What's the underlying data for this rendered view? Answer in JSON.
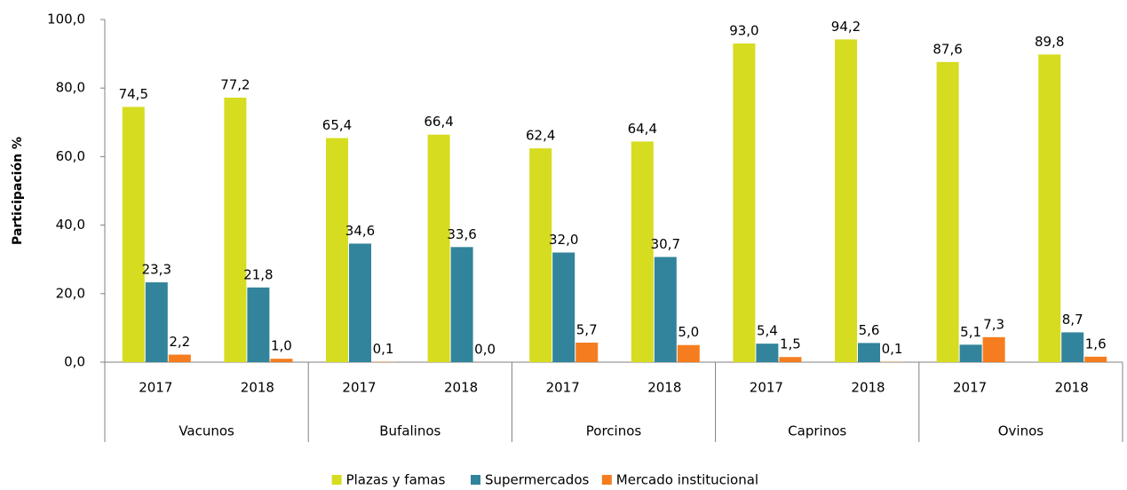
{
  "chart_data": {
    "type": "bar",
    "y_label": "Participación %",
    "categories": [
      "2017",
      "2018",
      "2017",
      "2018",
      "2017",
      "2018",
      "2017",
      "2018",
      "2017",
      "2018"
    ],
    "groups": [
      "Vacunos",
      "Bufalinos",
      "Porcinos",
      "Caprinos",
      "Ovinos"
    ],
    "series": [
      {
        "name": "Plazas y famas",
        "color": "#d6dc1f",
        "values": [
          74.5,
          77.2,
          65.4,
          66.4,
          62.4,
          64.4,
          93.0,
          94.2,
          87.6,
          89.8
        ],
        "value_labels": [
          "74,5",
          "77,2",
          "65,4",
          "66,4",
          "62,4",
          "64,4",
          "93,0",
          "94,2",
          "87,6",
          "89,8"
        ]
      },
      {
        "name": "Supermercados",
        "color": "#31849b",
        "values": [
          23.3,
          21.8,
          34.6,
          33.6,
          32.0,
          30.7,
          5.4,
          5.6,
          5.1,
          8.7
        ],
        "value_labels": [
          "23,3",
          "21,8",
          "34,6",
          "33,6",
          "32,0",
          "30,7",
          "5,4",
          "5,6",
          "5,1",
          "8,7"
        ]
      },
      {
        "name": "Mercado institucional",
        "color": "#f57d1f",
        "values": [
          2.2,
          1.0,
          0.1,
          0.0,
          5.7,
          5.0,
          1.5,
          0.1,
          7.3,
          1.6
        ],
        "value_labels": [
          "2,2",
          "1,0",
          "0,1",
          "0,0",
          "5,7",
          "5,0",
          "1,5",
          "0,1",
          "7,3",
          "1,6"
        ]
      }
    ],
    "ylim": [
      0,
      100
    ],
    "yticks": [
      {
        "value": 0,
        "label": "0,0"
      },
      {
        "value": 20,
        "label": "20,0"
      },
      {
        "value": 40,
        "label": "40,0"
      },
      {
        "value": 60,
        "label": "60,0"
      },
      {
        "value": 80,
        "label": "80,0"
      },
      {
        "value": 100,
        "label": "100,0"
      }
    ],
    "legend": "bottom"
  }
}
